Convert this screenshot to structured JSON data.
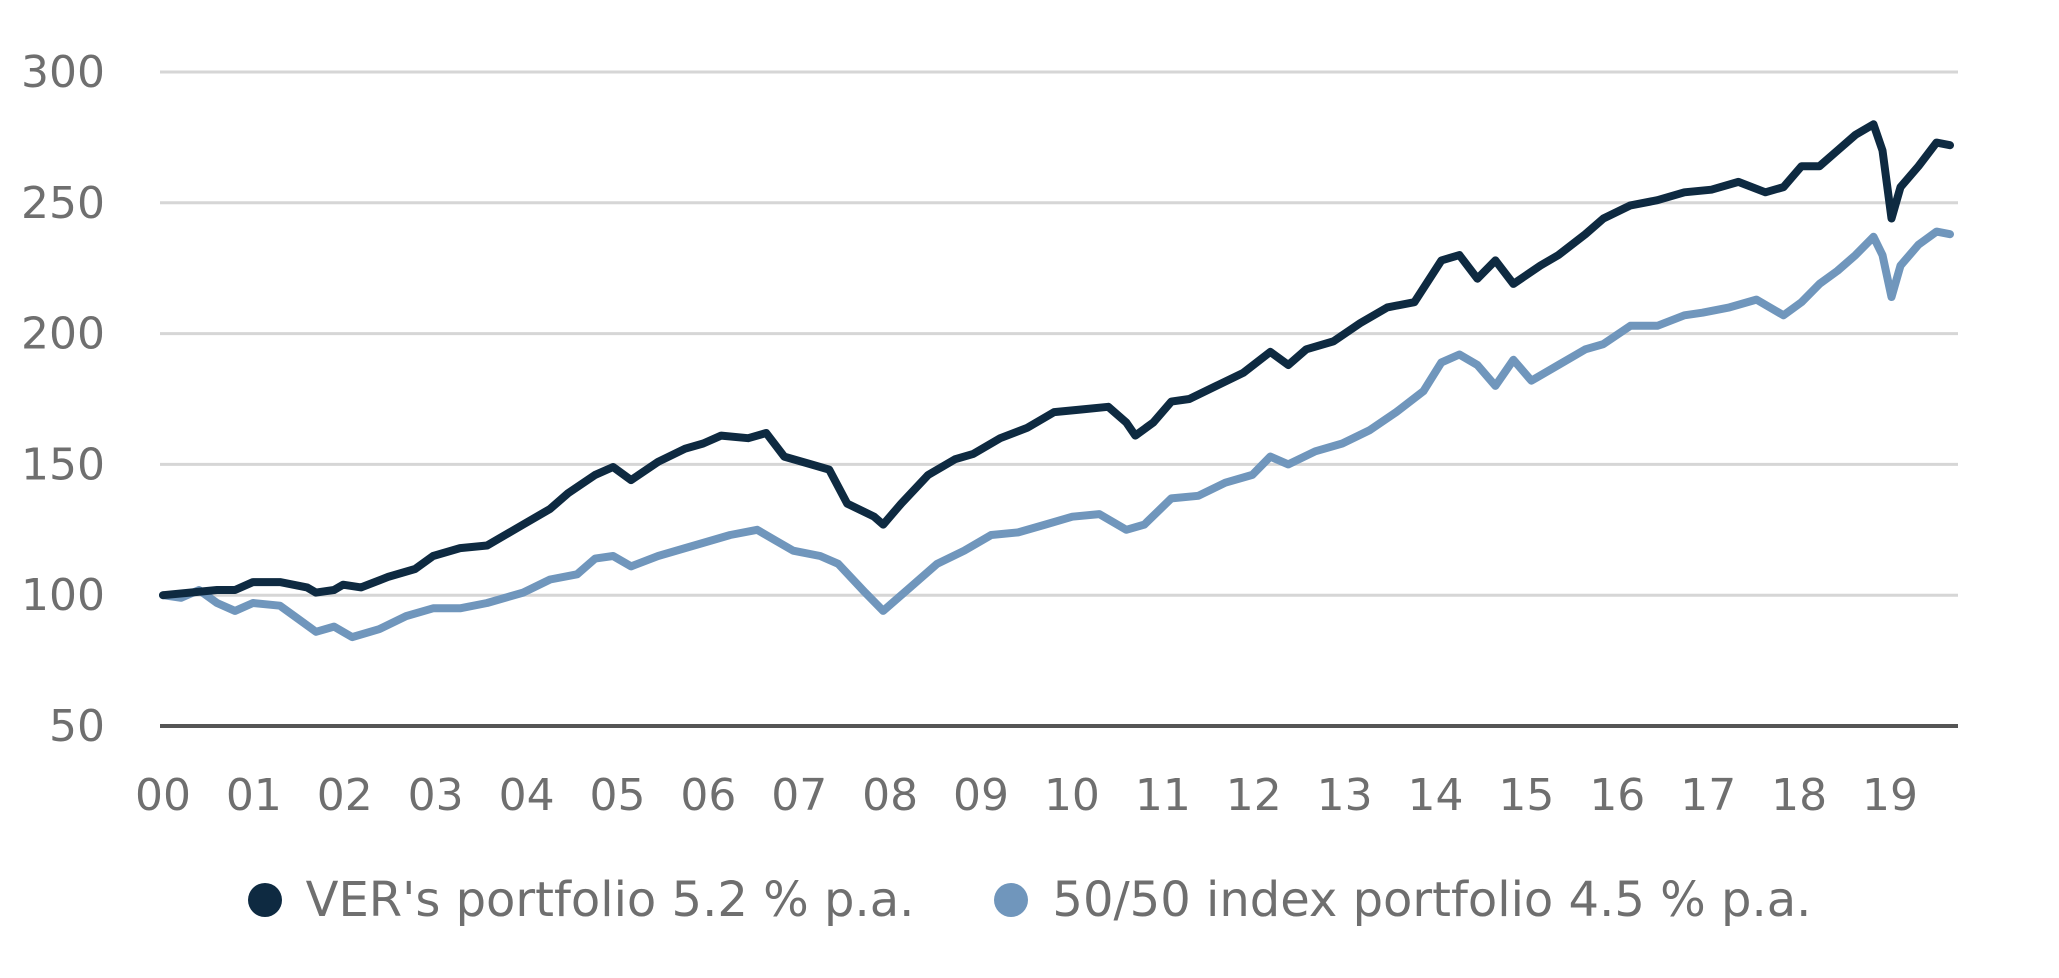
{
  "chart_data": {
    "type": "line",
    "title": "",
    "xlabel": "",
    "ylabel": "",
    "ylim": [
      50,
      300
    ],
    "yticks": [
      "300",
      "250",
      "200",
      "150",
      "100",
      "50"
    ],
    "ytick_values": [
      300,
      250,
      200,
      150,
      100,
      50
    ],
    "xticks": [
      "00",
      "01",
      "02",
      "03",
      "04",
      "05",
      "06",
      "07",
      "08",
      "09",
      "10",
      "11",
      "12",
      "13",
      "14",
      "15",
      "16",
      "17",
      "18",
      "19"
    ],
    "xlim": [
      0,
      19.85
    ],
    "grid": true,
    "legend_position": "bottom",
    "series": [
      {
        "name": "VER's portfolio 5.2 % p.a.",
        "color": "#0e2a41",
        "points": [
          [
            0.0,
            100
          ],
          [
            0.3,
            101
          ],
          [
            0.6,
            102
          ],
          [
            0.8,
            102
          ],
          [
            1.0,
            105
          ],
          [
            1.3,
            105
          ],
          [
            1.6,
            103
          ],
          [
            1.7,
            101
          ],
          [
            1.9,
            102
          ],
          [
            2.0,
            104
          ],
          [
            2.2,
            103
          ],
          [
            2.5,
            107
          ],
          [
            2.8,
            110
          ],
          [
            3.0,
            115
          ],
          [
            3.3,
            118
          ],
          [
            3.6,
            119
          ],
          [
            4.0,
            127
          ],
          [
            4.3,
            133
          ],
          [
            4.5,
            139
          ],
          [
            4.8,
            146
          ],
          [
            5.0,
            149
          ],
          [
            5.2,
            144
          ],
          [
            5.5,
            151
          ],
          [
            5.8,
            156
          ],
          [
            6.0,
            158
          ],
          [
            6.2,
            161
          ],
          [
            6.5,
            160
          ],
          [
            6.7,
            162
          ],
          [
            6.9,
            153
          ],
          [
            7.2,
            150
          ],
          [
            7.4,
            148
          ],
          [
            7.6,
            135
          ],
          [
            7.9,
            130
          ],
          [
            8.0,
            127
          ],
          [
            8.2,
            135
          ],
          [
            8.5,
            146
          ],
          [
            8.8,
            152
          ],
          [
            9.0,
            154
          ],
          [
            9.3,
            160
          ],
          [
            9.6,
            164
          ],
          [
            9.9,
            170
          ],
          [
            10.2,
            171
          ],
          [
            10.5,
            172
          ],
          [
            10.7,
            166
          ],
          [
            10.8,
            161
          ],
          [
            11.0,
            166
          ],
          [
            11.2,
            174
          ],
          [
            11.4,
            175
          ],
          [
            11.7,
            180
          ],
          [
            12.0,
            185
          ],
          [
            12.3,
            193
          ],
          [
            12.5,
            188
          ],
          [
            12.7,
            194
          ],
          [
            13.0,
            197
          ],
          [
            13.3,
            204
          ],
          [
            13.6,
            210
          ],
          [
            13.9,
            212
          ],
          [
            14.2,
            228
          ],
          [
            14.4,
            230
          ],
          [
            14.6,
            221
          ],
          [
            14.8,
            228
          ],
          [
            15.0,
            219
          ],
          [
            15.3,
            226
          ],
          [
            15.5,
            230
          ],
          [
            15.8,
            238
          ],
          [
            16.0,
            244
          ],
          [
            16.3,
            249
          ],
          [
            16.6,
            251
          ],
          [
            16.9,
            254
          ],
          [
            17.2,
            255
          ],
          [
            17.5,
            258
          ],
          [
            17.8,
            254
          ],
          [
            18.0,
            256
          ],
          [
            18.2,
            264
          ],
          [
            18.4,
            264
          ],
          [
            18.6,
            270
          ],
          [
            18.8,
            276
          ],
          [
            19.0,
            280
          ],
          [
            19.1,
            270
          ],
          [
            19.2,
            244
          ],
          [
            19.3,
            256
          ],
          [
            19.5,
            264
          ],
          [
            19.7,
            273
          ],
          [
            19.85,
            272
          ]
        ]
      },
      {
        "name": "50/50 index portfolio 4.5 % p.a.",
        "color": "#7096bc",
        "points": [
          [
            0.0,
            100
          ],
          [
            0.2,
            99
          ],
          [
            0.4,
            102
          ],
          [
            0.6,
            97
          ],
          [
            0.8,
            94
          ],
          [
            1.0,
            97
          ],
          [
            1.3,
            96
          ],
          [
            1.5,
            91
          ],
          [
            1.7,
            86
          ],
          [
            1.9,
            88
          ],
          [
            2.1,
            84
          ],
          [
            2.4,
            87
          ],
          [
            2.7,
            92
          ],
          [
            3.0,
            95
          ],
          [
            3.3,
            95
          ],
          [
            3.6,
            97
          ],
          [
            4.0,
            101
          ],
          [
            4.3,
            106
          ],
          [
            4.6,
            108
          ],
          [
            4.8,
            114
          ],
          [
            5.0,
            115
          ],
          [
            5.2,
            111
          ],
          [
            5.5,
            115
          ],
          [
            5.8,
            118
          ],
          [
            6.0,
            120
          ],
          [
            6.3,
            123
          ],
          [
            6.6,
            125
          ],
          [
            6.8,
            121
          ],
          [
            7.0,
            117
          ],
          [
            7.3,
            115
          ],
          [
            7.5,
            112
          ],
          [
            7.8,
            101
          ],
          [
            8.0,
            94
          ],
          [
            8.3,
            103
          ],
          [
            8.6,
            112
          ],
          [
            8.9,
            117
          ],
          [
            9.2,
            123
          ],
          [
            9.5,
            124
          ],
          [
            9.8,
            127
          ],
          [
            10.1,
            130
          ],
          [
            10.4,
            131
          ],
          [
            10.7,
            125
          ],
          [
            10.9,
            127
          ],
          [
            11.2,
            137
          ],
          [
            11.5,
            138
          ],
          [
            11.8,
            143
          ],
          [
            12.1,
            146
          ],
          [
            12.3,
            153
          ],
          [
            12.5,
            150
          ],
          [
            12.8,
            155
          ],
          [
            13.1,
            158
          ],
          [
            13.4,
            163
          ],
          [
            13.7,
            170
          ],
          [
            14.0,
            178
          ],
          [
            14.2,
            189
          ],
          [
            14.4,
            192
          ],
          [
            14.6,
            188
          ],
          [
            14.8,
            180
          ],
          [
            15.0,
            190
          ],
          [
            15.2,
            182
          ],
          [
            15.5,
            188
          ],
          [
            15.8,
            194
          ],
          [
            16.0,
            196
          ],
          [
            16.3,
            203
          ],
          [
            16.6,
            203
          ],
          [
            16.9,
            207
          ],
          [
            17.1,
            208
          ],
          [
            17.4,
            210
          ],
          [
            17.7,
            213
          ],
          [
            18.0,
            207
          ],
          [
            18.2,
            212
          ],
          [
            18.4,
            219
          ],
          [
            18.6,
            224
          ],
          [
            18.8,
            230
          ],
          [
            19.0,
            237
          ],
          [
            19.1,
            230
          ],
          [
            19.2,
            214
          ],
          [
            19.3,
            226
          ],
          [
            19.5,
            234
          ],
          [
            19.7,
            239
          ],
          [
            19.85,
            238
          ]
        ]
      }
    ]
  }
}
